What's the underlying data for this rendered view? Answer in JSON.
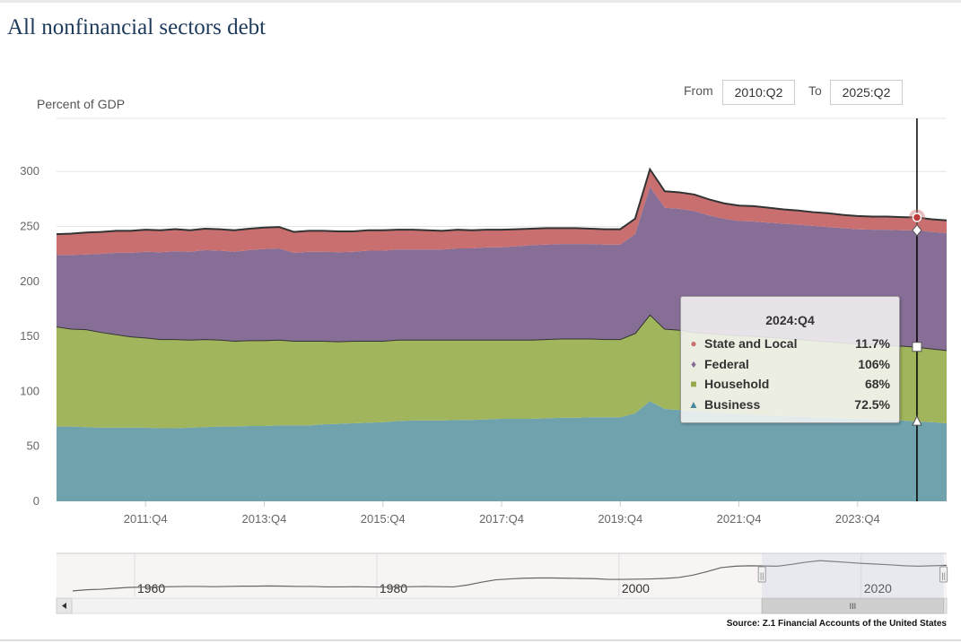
{
  "title": "All nonfinancial sectors debt",
  "range": {
    "from_label": "From",
    "from_value": "2010:Q2",
    "to_label": "To",
    "to_value": "2025:Q2"
  },
  "source": "Source: Z.1 Financial Accounts of the United States",
  "colors": {
    "business": "#6fa2ad",
    "household": "#a1b55c",
    "federal": "#876e97",
    "state": "#c96f70",
    "stack_line": "#333333",
    "grid": "#e6e6e6",
    "crosshair": "#000000"
  },
  "chart_data": {
    "type": "area",
    "stacked": true,
    "title": "All nonfinancial sectors debt",
    "ylabel": "Percent of GDP",
    "xlabel": "",
    "ylim": [
      0,
      350
    ],
    "yticks": [
      0,
      50,
      100,
      150,
      200,
      250,
      300
    ],
    "x_range": [
      "2010:Q2",
      "2025:Q2"
    ],
    "x_start_quarter_index": 0,
    "x_end_quarter_index": 60,
    "x_ticks": [
      {
        "label": "2011:Q4",
        "index": 6
      },
      {
        "label": "2013:Q4",
        "index": 14
      },
      {
        "label": "2015:Q4",
        "index": 22
      },
      {
        "label": "2017:Q4",
        "index": 30
      },
      {
        "label": "2019:Q4",
        "index": 38
      },
      {
        "label": "2021:Q4",
        "index": 46
      },
      {
        "label": "2023:Q4",
        "index": 54
      }
    ],
    "series": [
      {
        "name": "Business",
        "symbol": "▲",
        "values": [
          68,
          68,
          67.5,
          67,
          67,
          67,
          67,
          66.5,
          66.5,
          67,
          67.5,
          68,
          68,
          68.5,
          68.5,
          69,
          69,
          69,
          70,
          70.5,
          71,
          71.5,
          72,
          73,
          73.5,
          73.5,
          73.5,
          74,
          74,
          74.5,
          75,
          75,
          75,
          75.5,
          76,
          76,
          76.5,
          76.5,
          76.5,
          80,
          91,
          84,
          83,
          82,
          81,
          80,
          79,
          78.5,
          78,
          77.5,
          77,
          76.5,
          76,
          75.5,
          75,
          74.5,
          74,
          73.5,
          72.5,
          72,
          71
        ]
      },
      {
        "name": "Household",
        "symbol": "■",
        "values": [
          91,
          89,
          89,
          87,
          85,
          83,
          82,
          81,
          81,
          80,
          80,
          79,
          78,
          78,
          78,
          78,
          77,
          77,
          76,
          75,
          75,
          74.5,
          74,
          74,
          73.5,
          73.5,
          73.5,
          73,
          73,
          72.5,
          72,
          72,
          72,
          72,
          72,
          72,
          71.5,
          71,
          71,
          73,
          79,
          73,
          73,
          72,
          72,
          72,
          72,
          72,
          71.5,
          71,
          70.5,
          70,
          69.5,
          69,
          68.5,
          68.5,
          68,
          68,
          68,
          67,
          66.5
        ]
      },
      {
        "name": "Federal",
        "symbol": "♦",
        "values": [
          65,
          67,
          68,
          71,
          74,
          76,
          78,
          79,
          80,
          80,
          81,
          81,
          81,
          82,
          83,
          83,
          80,
          81,
          81,
          81,
          81,
          82,
          82,
          82,
          82,
          82,
          82,
          83,
          83,
          84,
          84,
          85,
          86,
          86,
          86,
          86,
          86,
          86,
          86,
          90,
          116,
          110,
          110,
          110,
          107,
          105,
          104,
          104,
          104,
          104,
          104,
          104,
          104,
          104,
          104,
          104,
          105,
          105,
          106,
          106,
          106.5
        ]
      },
      {
        "name": "State and Local",
        "symbol": "●",
        "values": [
          19,
          19.5,
          20,
          20,
          20,
          20,
          20,
          20,
          20,
          19.5,
          19.5,
          19.5,
          19.5,
          19.5,
          19.5,
          19.5,
          19,
          19,
          19,
          19,
          18.5,
          18.5,
          18.5,
          18,
          18,
          17.5,
          17,
          17,
          16.5,
          16,
          16,
          15.5,
          15,
          15,
          14.5,
          14.5,
          14,
          14,
          14,
          14,
          16,
          15,
          15,
          15,
          14.5,
          14,
          14,
          14,
          13.5,
          13,
          13,
          12.5,
          12.5,
          12,
          12,
          12,
          12,
          12,
          11.7,
          11.5,
          11.5
        ]
      }
    ],
    "tooltip": {
      "period": "2024:Q4",
      "index": 58,
      "rows": [
        {
          "name": "State and Local",
          "symbol": "●",
          "value": "11.7%"
        },
        {
          "name": "Federal",
          "symbol": "♦",
          "value": "106%"
        },
        {
          "name": "Household",
          "symbol": "■",
          "value": "68%"
        },
        {
          "name": "Business",
          "symbol": "▲",
          "value": "72.5%"
        }
      ]
    },
    "navigator": {
      "labels": [
        "1960",
        "1980",
        "2000",
        "2020"
      ],
      "label_years": [
        1960,
        1980,
        2000,
        2020
      ],
      "year_start": 1952,
      "year_end": 2025.5,
      "window": [
        2010.25,
        2025.25
      ],
      "scroll_grip": "III",
      "handle_grip": "||",
      "total_values": [
        133,
        138,
        140,
        144,
        148,
        149,
        150,
        151,
        152,
        152,
        151,
        152,
        153,
        153,
        154,
        153,
        152,
        152,
        150,
        150,
        151,
        150,
        149,
        150,
        151,
        152,
        151,
        150,
        158,
        170,
        180,
        184,
        187,
        188,
        188,
        187,
        186,
        185,
        182,
        182,
        183,
        184,
        186,
        190,
        200,
        215,
        232,
        238,
        240,
        239,
        238,
        246,
        255,
        262,
        258,
        254,
        250,
        247,
        244,
        240,
        238,
        240,
        242
      ]
    }
  }
}
